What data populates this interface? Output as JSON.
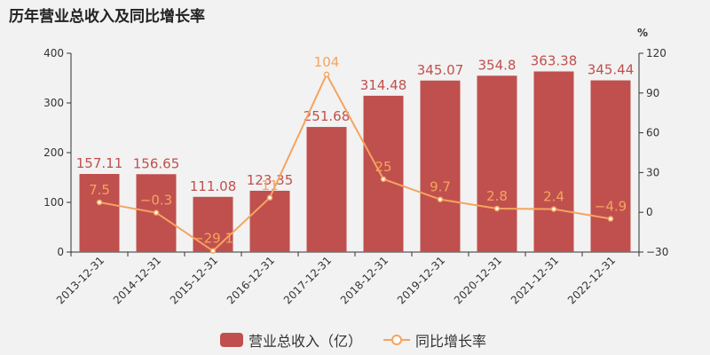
{
  "title": "历年营业总收入及同比增长率",
  "colors": {
    "bar": "#c0504d",
    "line": "#f4a460",
    "axis": "#333333"
  },
  "chart_data": {
    "type": "bar+line",
    "categories": [
      "2013-12-31",
      "2014-12-31",
      "2015-12-31",
      "2016-12-31",
      "2017-12-31",
      "2018-12-31",
      "2019-12-31",
      "2020-12-31",
      "2021-12-31",
      "2022-12-31"
    ],
    "series": [
      {
        "name": "营业总收入（亿）",
        "type": "bar",
        "axis": "left",
        "values": [
          157.11,
          156.65,
          111.08,
          123.35,
          251.68,
          314.48,
          345.07,
          354.8,
          363.38,
          345.44
        ],
        "labels": [
          "157.11",
          "156.65",
          "111.08",
          "123.35",
          "251.68",
          "314.48",
          "345.07",
          "354.8",
          "363.38",
          "345.44"
        ]
      },
      {
        "name": "同比增长率",
        "type": "line",
        "axis": "right",
        "values": [
          7.5,
          -0.3,
          -29.1,
          11,
          104,
          25,
          9.7,
          2.8,
          2.4,
          -4.9
        ],
        "labels": [
          "7.5",
          "−0.3",
          "−29.1",
          "11",
          "104",
          "25",
          "9.7",
          "2.8",
          "2.4",
          "−4.9"
        ]
      }
    ],
    "y_left": {
      "min": 0,
      "max": 400,
      "ticks": [
        "0",
        "100",
        "200",
        "300",
        "400"
      ],
      "tick_values": [
        0,
        100,
        200,
        300,
        400
      ]
    },
    "y_right": {
      "min": -30,
      "max": 120,
      "unit": "%",
      "ticks": [
        "−30",
        "0",
        "30",
        "60",
        "90",
        "120"
      ],
      "tick_values": [
        -30,
        0,
        30,
        60,
        90,
        120
      ]
    },
    "legend_position": "bottom-center",
    "grid": false
  }
}
